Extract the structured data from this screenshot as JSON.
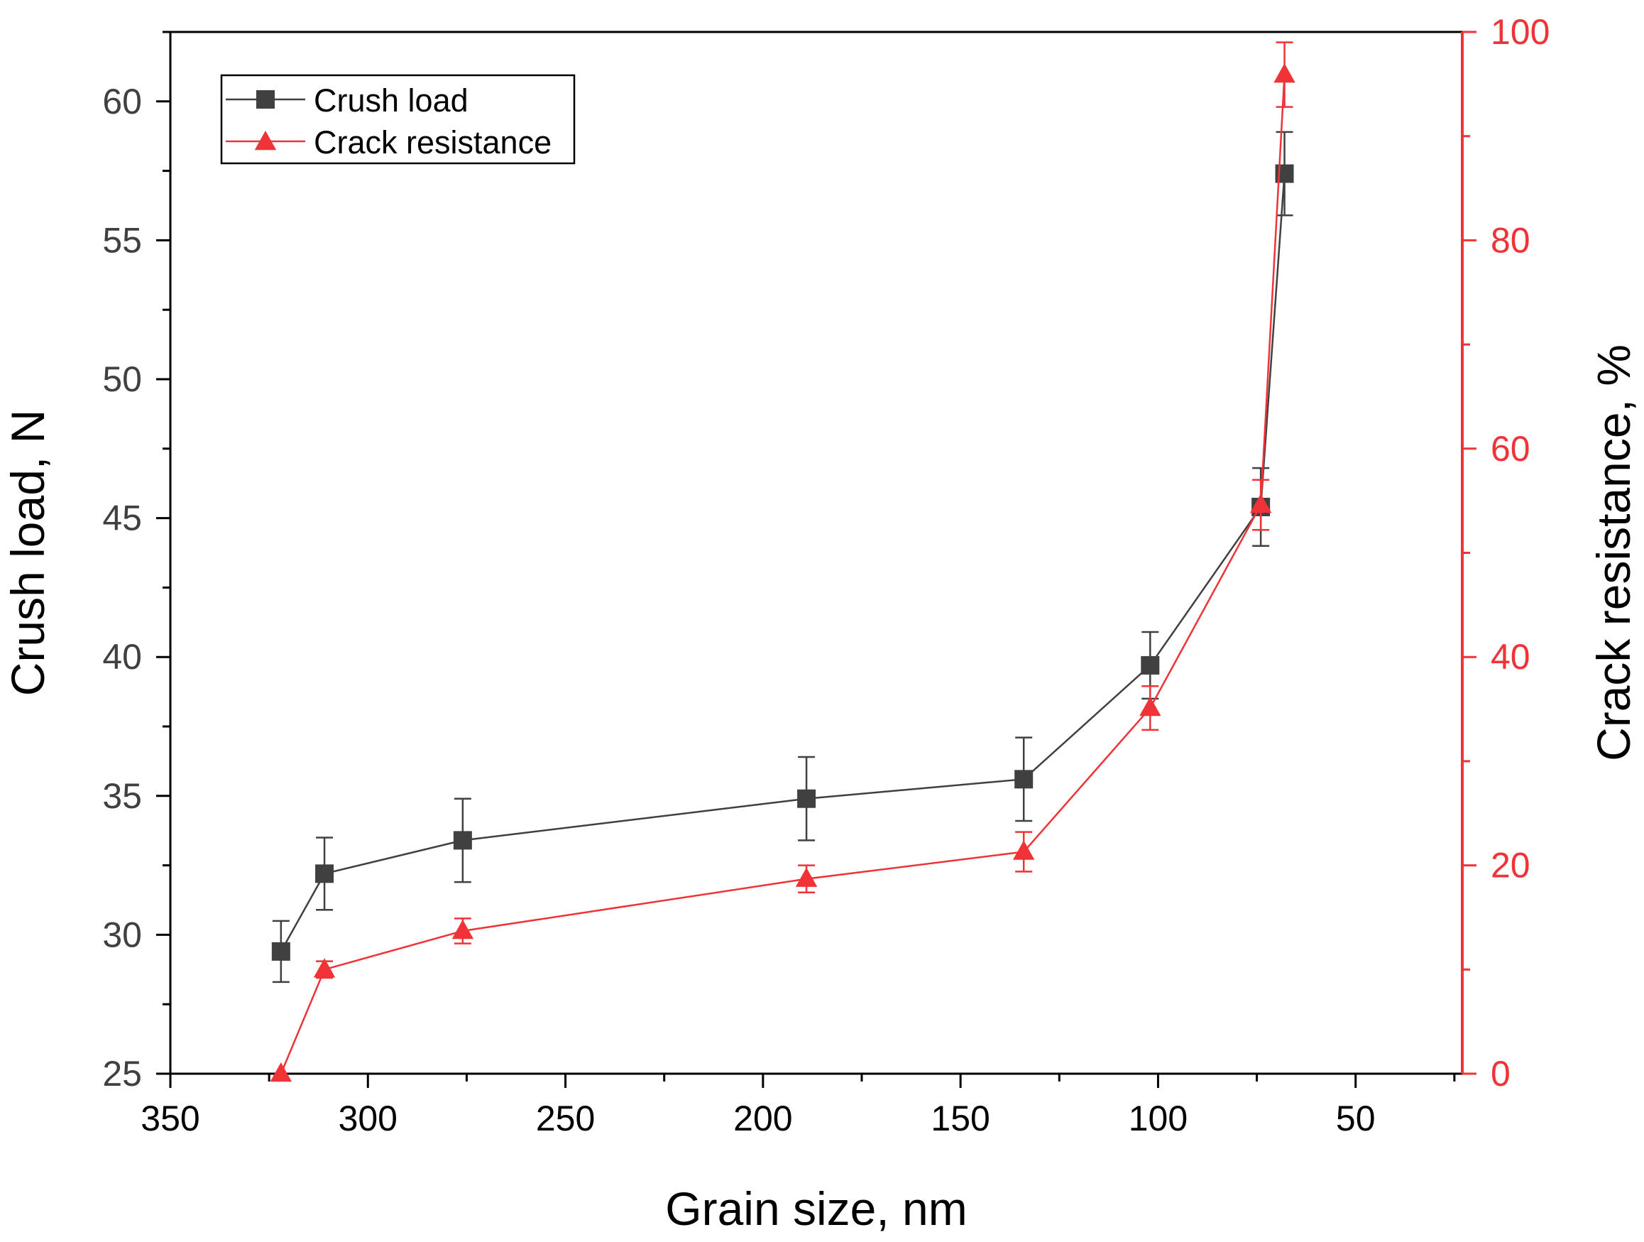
{
  "chart_data": {
    "type": "line",
    "title": "",
    "xlabel": "Grain size, nm",
    "ylabel": "Crush load, N",
    "y2label": "Crack resistance, %",
    "xlim": [
      350,
      23
    ],
    "x_reversed": true,
    "ylim": [
      25,
      62.5
    ],
    "y2lim": [
      0,
      100
    ],
    "xticks": [
      350,
      300,
      250,
      200,
      150,
      100,
      50
    ],
    "xminor": [
      325,
      275,
      225,
      175,
      125,
      75,
      25
    ],
    "yticks": [
      25,
      30,
      35,
      40,
      45,
      50,
      55,
      60
    ],
    "yminor": [
      27.5,
      32.5,
      37.5,
      42.5,
      47.5,
      52.5,
      57.5,
      62.5
    ],
    "y2ticks": [
      0,
      20,
      40,
      60,
      80,
      100
    ],
    "y2minor": [
      10,
      30,
      50,
      70,
      90
    ],
    "grid": false,
    "legend_position": "top-left",
    "series": [
      {
        "name": "Crush load",
        "axis": "left",
        "color": "#404040",
        "marker": "square",
        "x": [
          322,
          311,
          276,
          189,
          134,
          102,
          74,
          68
        ],
        "values": [
          29.4,
          32.2,
          33.4,
          34.9,
          35.6,
          39.7,
          45.4,
          57.4
        ],
        "errors": [
          1.1,
          1.3,
          1.5,
          1.5,
          1.5,
          1.2,
          1.4,
          1.5
        ]
      },
      {
        "name": "Crack resistance",
        "axis": "right",
        "color": "#ef3337",
        "marker": "triangle",
        "x": [
          322,
          311,
          276,
          189,
          134,
          102,
          74,
          68
        ],
        "values": [
          0,
          10,
          13.7,
          18.7,
          21.3,
          35.1,
          54.6,
          95.9
        ],
        "errors": [
          0,
          0.8,
          1.2,
          1.3,
          1.9,
          2.1,
          2.4,
          3.1
        ]
      }
    ]
  }
}
